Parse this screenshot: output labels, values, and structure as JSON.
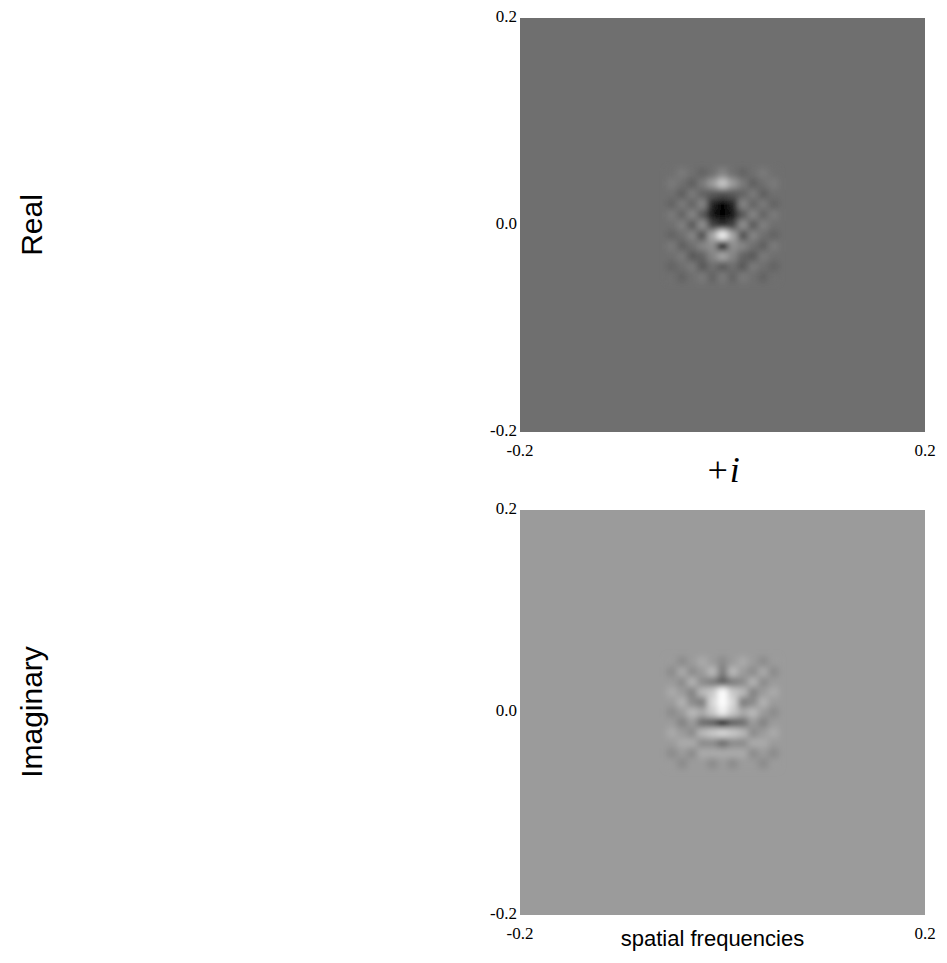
{
  "chart_data": [
    {
      "type": "heatmap",
      "y_label": "Real",
      "x": [
        -0.05,
        -0.04,
        -0.03,
        -0.02,
        -0.01,
        0,
        0.01,
        0.02,
        0.03,
        0.04,
        0.05
      ],
      "y": [
        0.05,
        0.04,
        0.03,
        0.02,
        0.01,
        0,
        -0.01,
        -0.02,
        -0.03,
        -0.04,
        -0.05
      ],
      "z": [
        [
          0,
          0.1,
          0,
          -0.1,
          0,
          0.2,
          0,
          -0.1,
          0,
          0.1,
          0
        ],
        [
          0.1,
          0,
          -0.15,
          0.1,
          0.4,
          0.8,
          0.4,
          0.1,
          -0.15,
          0,
          0.1
        ],
        [
          0,
          -0.15,
          0.1,
          -0.1,
          -0.2,
          -0.3,
          -0.2,
          -0.1,
          0.1,
          -0.15,
          0
        ],
        [
          -0.1,
          0.1,
          -0.1,
          0.2,
          -0.7,
          -1,
          -0.7,
          0.2,
          -0.1,
          0.1,
          -0.1
        ],
        [
          0.1,
          -0.1,
          0.2,
          -0.2,
          -0.8,
          -1,
          -0.8,
          -0.2,
          0.2,
          -0.1,
          0.1
        ],
        [
          0,
          0.15,
          -0.2,
          0.3,
          -0.4,
          -0.6,
          -0.4,
          0.3,
          -0.2,
          0.15,
          0
        ],
        [
          -0.1,
          0,
          0.2,
          -0.3,
          0.5,
          1.2,
          0.5,
          -0.3,
          0.2,
          0,
          -0.1
        ],
        [
          0.1,
          -0.15,
          0,
          0.2,
          0.3,
          -1,
          0.3,
          0.2,
          0,
          -0.15,
          0.1
        ],
        [
          0,
          0.1,
          -0.2,
          -0.1,
          0.2,
          0.5,
          0.2,
          -0.1,
          -0.2,
          0.1,
          0
        ],
        [
          -0.1,
          0,
          0.1,
          -0.2,
          0,
          -0.2,
          0,
          -0.2,
          0.1,
          0,
          -0.1
        ],
        [
          0,
          -0.1,
          0,
          0.1,
          -0.1,
          0.1,
          -0.1,
          0.1,
          0,
          -0.1,
          0
        ]
      ],
      "zlim": [
        -1,
        1.3
      ],
      "xlim": [
        -0.2,
        0.2
      ],
      "ylim": [
        -0.2,
        0.2
      ],
      "xticks": [
        -0.2,
        0.2
      ],
      "yticks": [
        -0.2,
        {
          "value": 0,
          "label": "0.0"
        },
        0.2
      ]
    },
    {
      "type": "heatmap",
      "title": "+i",
      "y_label": "Imaginary",
      "x_label": "spatial frequencies",
      "x": [
        -0.05,
        -0.04,
        -0.03,
        -0.02,
        -0.01,
        0,
        0.01,
        0.02,
        0.03,
        0.04,
        0.05
      ],
      "y": [
        0.05,
        0.04,
        0.03,
        0.02,
        0.01,
        0,
        -0.01,
        -0.02,
        -0.03,
        -0.04,
        -0.05
      ],
      "z": [
        [
          0,
          -0.1,
          0,
          0.1,
          0,
          -0.1,
          0,
          0.1,
          0,
          -0.1,
          0
        ],
        [
          -0.1,
          0.1,
          -0.1,
          0,
          0.2,
          -0.2,
          0.2,
          0,
          -0.1,
          0.1,
          -0.1
        ],
        [
          0,
          -0.1,
          0.15,
          -0.1,
          -0.2,
          -0.4,
          -0.2,
          -0.1,
          0.15,
          -0.1,
          0
        ],
        [
          0.1,
          0,
          -0.15,
          0.2,
          0.3,
          0.65,
          0.3,
          0.2,
          -0.15,
          0,
          0.1
        ],
        [
          0,
          0.15,
          -0.1,
          -0.2,
          0.4,
          0.65,
          0.4,
          -0.2,
          -0.1,
          0.15,
          0
        ],
        [
          -0.1,
          0,
          0.2,
          0.1,
          0.3,
          0.55,
          0.3,
          0.1,
          0.2,
          0,
          -0.1
        ],
        [
          0,
          -0.15,
          0,
          -0.3,
          -0.4,
          -1,
          -0.4,
          -0.3,
          0,
          -0.15,
          0
        ],
        [
          0.1,
          0,
          -0.1,
          0.2,
          0.3,
          0.4,
          0.3,
          0.2,
          -0.1,
          0,
          0.1
        ],
        [
          0,
          0.1,
          0.1,
          -0.1,
          -0.1,
          -0.3,
          -0.1,
          -0.1,
          0.1,
          0.1,
          0
        ],
        [
          -0.1,
          0,
          -0.1,
          0.1,
          0.1,
          0.1,
          0.1,
          0.1,
          -0.1,
          0,
          -0.1
        ],
        [
          0,
          -0.1,
          0,
          0,
          -0.1,
          0,
          -0.1,
          0,
          0,
          -0.1,
          0
        ]
      ],
      "zlim": [
        -1,
        0.65
      ],
      "xlim": [
        -0.2,
        0.2
      ],
      "ylim": [
        -0.2,
        0.2
      ],
      "xticks": [
        -0.2,
        0.2
      ],
      "yticks": [
        -0.2,
        {
          "value": 0,
          "label": "0.0"
        },
        0.2
      ]
    }
  ]
}
